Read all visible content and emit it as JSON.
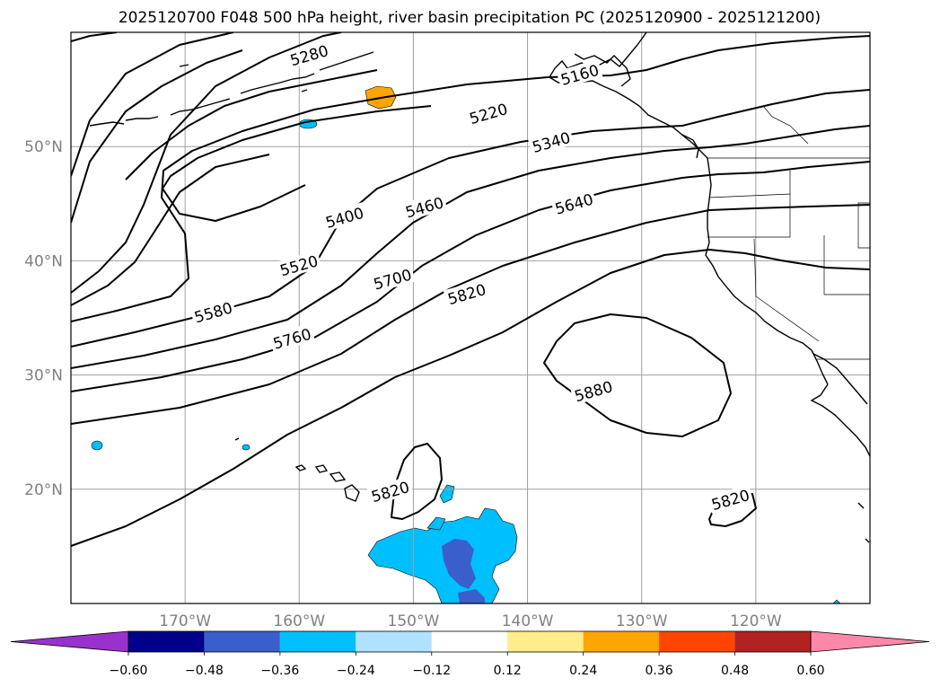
{
  "title": "2025120700 F048 500 hPa height, river basin precipitation PC (2025120900 - 2025121200)",
  "map": {
    "lon_range": [
      -180,
      -110
    ],
    "lat_range": [
      10,
      60
    ],
    "lon_ticks": [
      {
        "value": -170,
        "label": "170°W"
      },
      {
        "value": -160,
        "label": "160°W"
      },
      {
        "value": -150,
        "label": "150°W"
      },
      {
        "value": -140,
        "label": "140°W"
      },
      {
        "value": -130,
        "label": "130°W"
      },
      {
        "value": -120,
        "label": "120°W"
      }
    ],
    "lat_ticks": [
      {
        "value": 20,
        "label": "20°N"
      },
      {
        "value": 30,
        "label": "30°N"
      },
      {
        "value": 40,
        "label": "40°N"
      },
      {
        "value": 50,
        "label": "50°N"
      }
    ],
    "grid": true,
    "contour_interval": 60,
    "contour_labels": [
      {
        "text": "5280",
        "lon": -159.1,
        "lat": 57.9
      },
      {
        "text": "5160",
        "lon": -135.4,
        "lat": 56.2
      },
      {
        "text": "5220",
        "lon": -143.4,
        "lat": 52.8
      },
      {
        "text": "5340",
        "lon": -137.9,
        "lat": 50.3
      },
      {
        "text": "5400",
        "lon": -156.0,
        "lat": 43.7
      },
      {
        "text": "5460",
        "lon": -149.0,
        "lat": 44.6
      },
      {
        "text": "5520",
        "lon": -160.0,
        "lat": 39.5
      },
      {
        "text": "5640",
        "lon": -135.9,
        "lat": 44.9
      },
      {
        "text": "5700",
        "lon": -151.8,
        "lat": 38.3
      },
      {
        "text": "5580",
        "lon": -167.5,
        "lat": 35.4
      },
      {
        "text": "5760",
        "lon": -160.6,
        "lat": 33.1
      },
      {
        "text": "5820",
        "lon": -145.3,
        "lat": 37.0
      },
      {
        "text": "5880",
        "lon": -134.2,
        "lat": 28.5
      },
      {
        "text": "5820",
        "lon": -152.0,
        "lat": 19.7
      },
      {
        "text": "5820",
        "lon": -122.2,
        "lat": 19.0
      }
    ],
    "shading_legend": {
      "levels": [
        "−0.60",
        "−0.48",
        "−0.36",
        "−0.24",
        "−0.12",
        "0.12",
        "0.24",
        "0.36",
        "0.48",
        "0.60"
      ],
      "colors": [
        "#9932cc",
        "#00008b",
        "#3a5fcd",
        "#00bfff",
        "#b0e2ff",
        "#ffffff",
        "#ffec8b",
        "#ffa500",
        "#ff4500",
        "#b22222",
        "#ff88aa"
      ]
    }
  }
}
